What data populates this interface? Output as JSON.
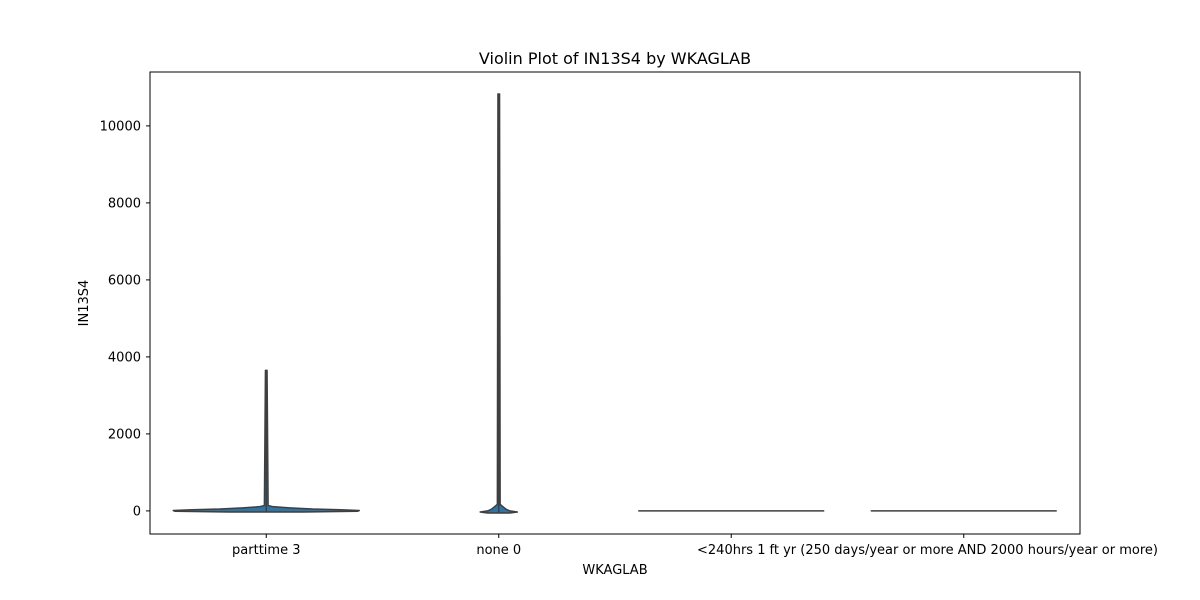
{
  "chart_data": {
    "type": "violin",
    "title": "Violin Plot of IN13S4 by WKAGLAB",
    "xlabel": "WKAGLAB",
    "ylabel": "IN13S4",
    "categories": [
      "parttime 3",
      "none 0",
      "<240hrs 1",
      "ft yr (250 days/year or more AND 2000 hours/year or more)"
    ],
    "ylim": [
      -600,
      11400
    ],
    "yticks": [
      0,
      2000,
      4000,
      6000,
      8000,
      10000
    ],
    "grid": false,
    "fill_color": "#3274a1",
    "edge_color": "#3f3f3f",
    "violins": [
      {
        "category": "parttime 3",
        "min": -30,
        "max": 3650,
        "profile": [
          [
            -30,
            0.4
          ],
          [
            -10,
            0.98
          ],
          [
            10,
            1.0
          ],
          [
            30,
            0.8
          ],
          [
            50,
            0.5
          ],
          [
            80,
            0.25
          ],
          [
            110,
            0.07
          ],
          [
            140,
            0.02
          ],
          [
            3650,
            0.008
          ]
        ]
      },
      {
        "category": "none 0",
        "min": -55,
        "max": 10830,
        "profile": [
          [
            -55,
            0.12
          ],
          [
            -30,
            0.2
          ],
          [
            0,
            0.12
          ],
          [
            40,
            0.08
          ],
          [
            80,
            0.06
          ],
          [
            120,
            0.04
          ],
          [
            170,
            0.015
          ],
          [
            10830,
            0.008
          ]
        ]
      },
      {
        "category": "<240hrs 1",
        "min": 0,
        "max": 0,
        "flat": true
      },
      {
        "category": "ft yr (250 days/year or more AND 2000 hours/year or more)",
        "min": 0,
        "max": 0,
        "flat": true
      }
    ]
  }
}
